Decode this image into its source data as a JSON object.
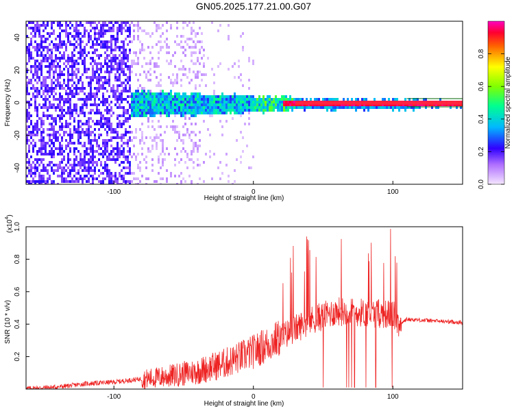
{
  "title": "GN05.2025.177.21.00.G07",
  "chart_data": [
    {
      "type": "heatmap",
      "xlabel": "Height of straight line (km)",
      "ylabel": "Frequency (Hz)",
      "xlim": [
        -163,
        150
      ],
      "ylim": [
        -50,
        50
      ],
      "xticks": [
        -100,
        0,
        100
      ],
      "yticks": [
        -40,
        -20,
        0,
        20,
        40
      ],
      "colorbar": {
        "label": "Normalized spectral amplitude",
        "range": [
          0,
          1
        ],
        "ticks": [
          0.0,
          0.2,
          0.4,
          0.6,
          0.8
        ]
      },
      "regions": [
        {
          "x": [
            -163,
            -88
          ],
          "description_level": "sparse purple noise across all frequencies"
        },
        {
          "x": [
            -88,
            -35
          ],
          "description_level": "faint noise"
        },
        {
          "x": [
            -88,
            30
          ],
          "freq_center": 0,
          "freq_halfwidth": [
            7,
            3
          ]
        },
        {
          "x": [
            30,
            120
          ],
          "freq_center": 0,
          "freq_halfwidth": 2
        },
        {
          "x": [
            120,
            150
          ],
          "freq_center": 0,
          "freq_halfwidth": 1
        }
      ]
    },
    {
      "type": "line",
      "xlabel": "Height of straight line (km)",
      "ylabel": "SNR (10 * v/v)",
      "scale_label": "(x10",
      "scale_exp": "4",
      "xlim": [
        -163,
        150
      ],
      "ylim": [
        0,
        1.0
      ],
      "xticks": [
        -100,
        0,
        100
      ],
      "yticks": [
        0.2,
        0.4,
        0.6,
        0.8,
        1.0
      ],
      "series": [
        {
          "color": "#ee2222",
          "x": [
            -163,
            -140,
            -120,
            -100,
            -80,
            -60,
            -40,
            -20,
            0,
            20,
            40,
            60,
            80,
            100,
            105,
            110,
            130,
            150
          ],
          "values": [
            0.0,
            0.01,
            0.03,
            0.04,
            0.06,
            0.08,
            0.11,
            0.16,
            0.23,
            0.32,
            0.42,
            0.48,
            0.47,
            0.46,
            0.4,
            0.43,
            0.42,
            0.41
          ]
        }
      ]
    }
  ],
  "colors": {
    "line": "#ee2222",
    "frame": "#000000"
  }
}
